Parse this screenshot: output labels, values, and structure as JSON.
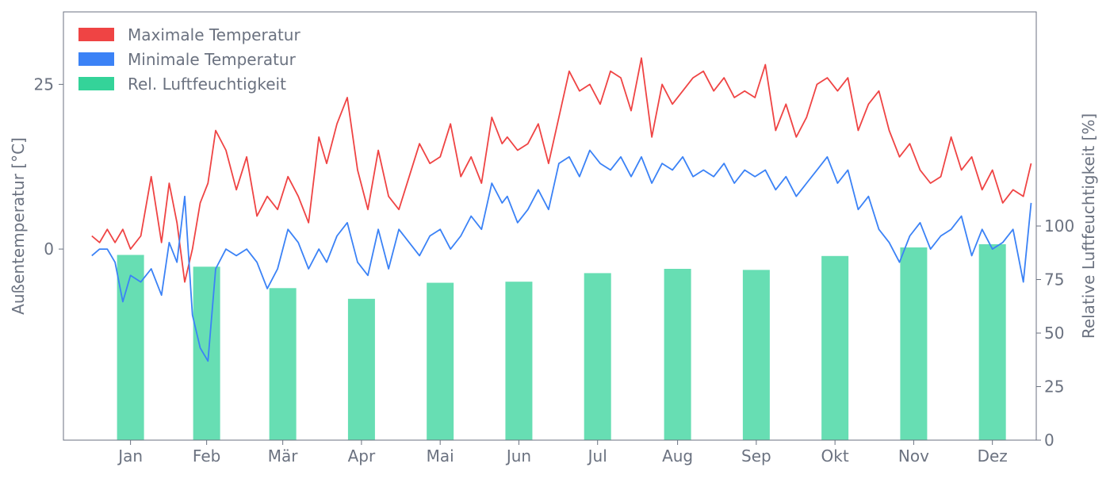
{
  "chart_data": {
    "type": "line",
    "xlabel": "",
    "ylabel_left": "Außentemperatur [°C]",
    "ylabel_right": "Relative Luftfeuchtigkeit [%]",
    "ylim_left": [
      -29,
      36
    ],
    "ylim_right": [
      0,
      200
    ],
    "left_ticks": [
      0,
      25
    ],
    "right_ticks": [
      0,
      25,
      50,
      75,
      100
    ],
    "months": [
      "Jan",
      "Feb",
      "Mär",
      "Apr",
      "Mai",
      "Jun",
      "Jul",
      "Aug",
      "Sep",
      "Okt",
      "Nov",
      "Dez"
    ],
    "grid": false,
    "legend_position": "top-left",
    "colors": {
      "max": "#ef4444",
      "min": "#3b82f6",
      "humidity": "#34d399",
      "axis": "#6b7280",
      "text": "#6b7280"
    },
    "series": [
      {
        "name": "Maximale Temperatur",
        "type": "line",
        "x_day": [
          1,
          4,
          7,
          10,
          13,
          16,
          20,
          24,
          28,
          31,
          34,
          37,
          40,
          43,
          46,
          49,
          53,
          57,
          61,
          65,
          69,
          73,
          77,
          81,
          85,
          89,
          92,
          96,
          100,
          104,
          108,
          112,
          116,
          120,
          124,
          128,
          132,
          136,
          140,
          144,
          148,
          152,
          156,
          160,
          162,
          166,
          170,
          174,
          178,
          182,
          186,
          190,
          194,
          198,
          202,
          206,
          210,
          214,
          218,
          222,
          226,
          230,
          234,
          238,
          242,
          246,
          250,
          254,
          258,
          262,
          266,
          270,
          274,
          278,
          282,
          286,
          290,
          294,
          298,
          302,
          306,
          310,
          314,
          318,
          322,
          326,
          330,
          334,
          338,
          342,
          346,
          350,
          354,
          358,
          362,
          365
        ],
        "y": [
          2,
          1,
          3,
          1,
          3,
          0,
          2,
          11,
          1,
          10,
          4,
          -5,
          0,
          7,
          10,
          18,
          15,
          9,
          14,
          5,
          8,
          6,
          11,
          8,
          4,
          17,
          13,
          19,
          23,
          12,
          6,
          15,
          8,
          6,
          11,
          16,
          13,
          14,
          19,
          11,
          14,
          10,
          20,
          16,
          17,
          15,
          16,
          19,
          13,
          20,
          27,
          24,
          25,
          22,
          27,
          26,
          21,
          29,
          17,
          25,
          22,
          24,
          26,
          27,
          24,
          26,
          23,
          24,
          23,
          28,
          18,
          22,
          17,
          20,
          25,
          26,
          24,
          26,
          18,
          22,
          24,
          18,
          14,
          16,
          12,
          10,
          11,
          17,
          12,
          14,
          9,
          12,
          7,
          9,
          8,
          13
        ],
        "unit": "°C"
      },
      {
        "name": "Minimale Temperatur",
        "type": "line",
        "x_day": [
          1,
          4,
          7,
          10,
          13,
          16,
          20,
          24,
          28,
          31,
          34,
          37,
          40,
          43,
          46,
          49,
          53,
          57,
          61,
          65,
          69,
          73,
          77,
          81,
          85,
          89,
          92,
          96,
          100,
          104,
          108,
          112,
          116,
          120,
          124,
          128,
          132,
          136,
          140,
          144,
          148,
          152,
          156,
          160,
          162,
          166,
          170,
          174,
          178,
          182,
          186,
          190,
          194,
          198,
          202,
          206,
          210,
          214,
          218,
          222,
          226,
          230,
          234,
          238,
          242,
          246,
          250,
          254,
          258,
          262,
          266,
          270,
          274,
          278,
          282,
          286,
          290,
          294,
          298,
          302,
          306,
          310,
          314,
          318,
          322,
          326,
          330,
          334,
          338,
          342,
          346,
          350,
          354,
          358,
          362,
          365
        ],
        "y": [
          -1,
          0,
          0,
          -2,
          -8,
          -4,
          -5,
          -3,
          -7,
          1,
          -2,
          8,
          -10,
          -15,
          -17,
          -3,
          0,
          -1,
          0,
          -2,
          -6,
          -3,
          3,
          1,
          -3,
          0,
          -2,
          2,
          4,
          -2,
          -4,
          3,
          -3,
          3,
          1,
          -1,
          2,
          3,
          0,
          2,
          5,
          3,
          10,
          7,
          8,
          4,
          6,
          9,
          6,
          13,
          14,
          11,
          15,
          13,
          12,
          14,
          11,
          14,
          10,
          13,
          12,
          14,
          11,
          12,
          11,
          13,
          10,
          12,
          11,
          12,
          9,
          11,
          8,
          10,
          12,
          14,
          10,
          12,
          6,
          8,
          3,
          1,
          -2,
          2,
          4,
          0,
          2,
          3,
          5,
          -1,
          3,
          0,
          1,
          3,
          -5,
          7
        ],
        "unit": "°C"
      },
      {
        "name": "Rel. Luftfeuchtigkeit",
        "type": "bar",
        "categories": [
          "Jan",
          "Feb",
          "Mär",
          "Apr",
          "Mai",
          "Jun",
          "Jul",
          "Aug",
          "Sep",
          "Okt",
          "Nov",
          "Dez"
        ],
        "values": [
          86.5,
          81,
          71,
          66,
          73.5,
          74,
          78,
          80,
          79.5,
          86,
          90,
          91.5
        ],
        "unit": "%"
      }
    ]
  }
}
